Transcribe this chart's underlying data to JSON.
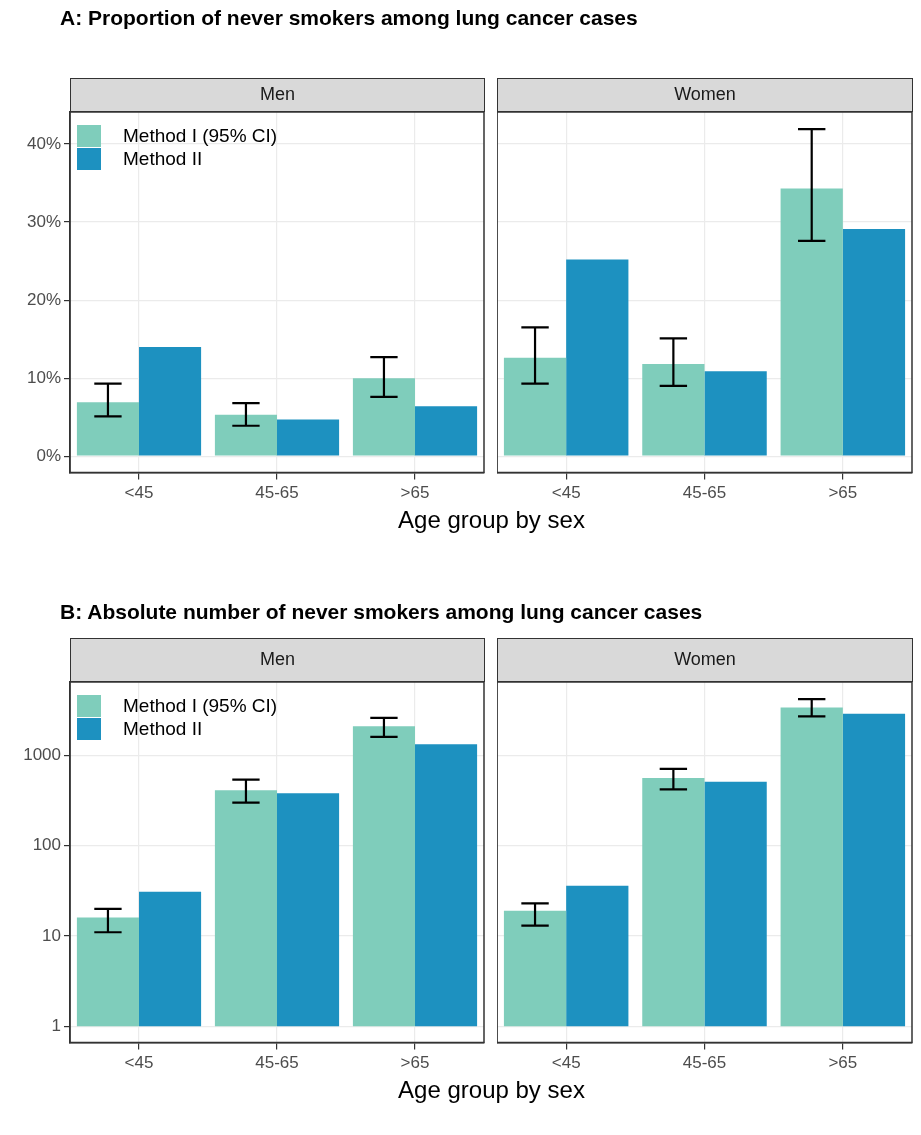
{
  "chart_data": [
    {
      "type": "bar",
      "title": "A: Proportion of never smokers among lung cancer cases",
      "subtitle": "Men",
      "xlabel": "Age group by sex",
      "categories": [
        "<45",
        "45-65",
        ">65"
      ],
      "series": [
        {
          "name": "Method I (95% CI)",
          "color": "#7fcdbb",
          "values": [
            6.9,
            5.3,
            10.0
          ],
          "errors": [
            [
              5.1,
              9.3
            ],
            [
              3.9,
              6.8
            ],
            [
              7.6,
              12.7
            ]
          ]
        },
        {
          "name": "Method II",
          "color": "#1d91c0",
          "values": [
            14.0,
            4.7,
            6.4
          ]
        }
      ],
      "ylim": [
        -2.1,
        44.1
      ],
      "yticks": [
        {
          "value": 0,
          "label": "0%"
        },
        {
          "value": 10,
          "label": "10%"
        },
        {
          "value": 20,
          "label": "20%"
        },
        {
          "value": 30,
          "label": "30%"
        },
        {
          "value": 40,
          "label": "40%"
        }
      ],
      "grid": true,
      "legend": "top left"
    },
    {
      "type": "bar",
      "subtitle": "Women",
      "categories": [
        "<45",
        "45-65",
        ">65"
      ],
      "series": [
        {
          "color": "#7fcdbb",
          "values": [
            12.6,
            11.8,
            34.3
          ],
          "errors": [
            [
              9.3,
              16.5
            ],
            [
              9.0,
              15.1
            ],
            [
              27.6,
              41.9
            ]
          ]
        },
        {
          "color": "#1d91c0",
          "values": [
            25.2,
            10.9,
            29.1
          ]
        }
      ],
      "ylim": [
        -2.1,
        44.1
      ],
      "yticks": [
        0,
        10,
        20,
        30,
        40
      ],
      "grid": true,
      "tick_labels": "x"
    },
    {
      "type": "bar",
      "title": "B: Absolute number of never smokers among lung cancer cases",
      "subtitle": "Men",
      "xlabel": "Age group by sex",
      "categories": [
        "<45",
        "45-65",
        ">65"
      ],
      "series": [
        {
          "name": "Method I (95% CI)",
          "color": "#7fcdbb",
          "values": [
            15,
            410,
            2100
          ],
          "base": [
            1,
            1,
            1
          ],
          "errors": [
            [
              11,
              20
            ],
            [
              300,
              540
            ],
            [
              1600,
              2600
            ]
          ]
        },
        {
          "name": "Method II",
          "color": "#1d91c0",
          "values": [
            30,
            380,
            1330
          ],
          "base": [
            1,
            1,
            1
          ]
        }
      ],
      "log": "y",
      "ylim": [
        0.66,
        6500
      ],
      "yticks": [
        1,
        10,
        100,
        1000
      ],
      "grid": true,
      "legend": "top left"
    },
    {
      "type": "bar",
      "subtitle": "Women",
      "categories": [
        "<45",
        "45-65",
        ">65"
      ],
      "series": [
        {
          "color": "#7fcdbb",
          "values": [
            18,
            560,
            3400
          ],
          "base": [
            1,
            1,
            1
          ],
          "errors": [
            [
              13,
              23
            ],
            [
              420,
              710
            ],
            [
              2700,
              4200
            ]
          ]
        },
        {
          "color": "#1d91c0",
          "values": [
            35,
            510,
            2900
          ],
          "base": [
            1,
            1,
            1
          ]
        }
      ],
      "log": "y",
      "ylim": [
        0.66,
        6500
      ],
      "yticks": [
        1,
        10,
        100,
        1000
      ],
      "grid": true,
      "tick_labels": "x"
    }
  ]
}
